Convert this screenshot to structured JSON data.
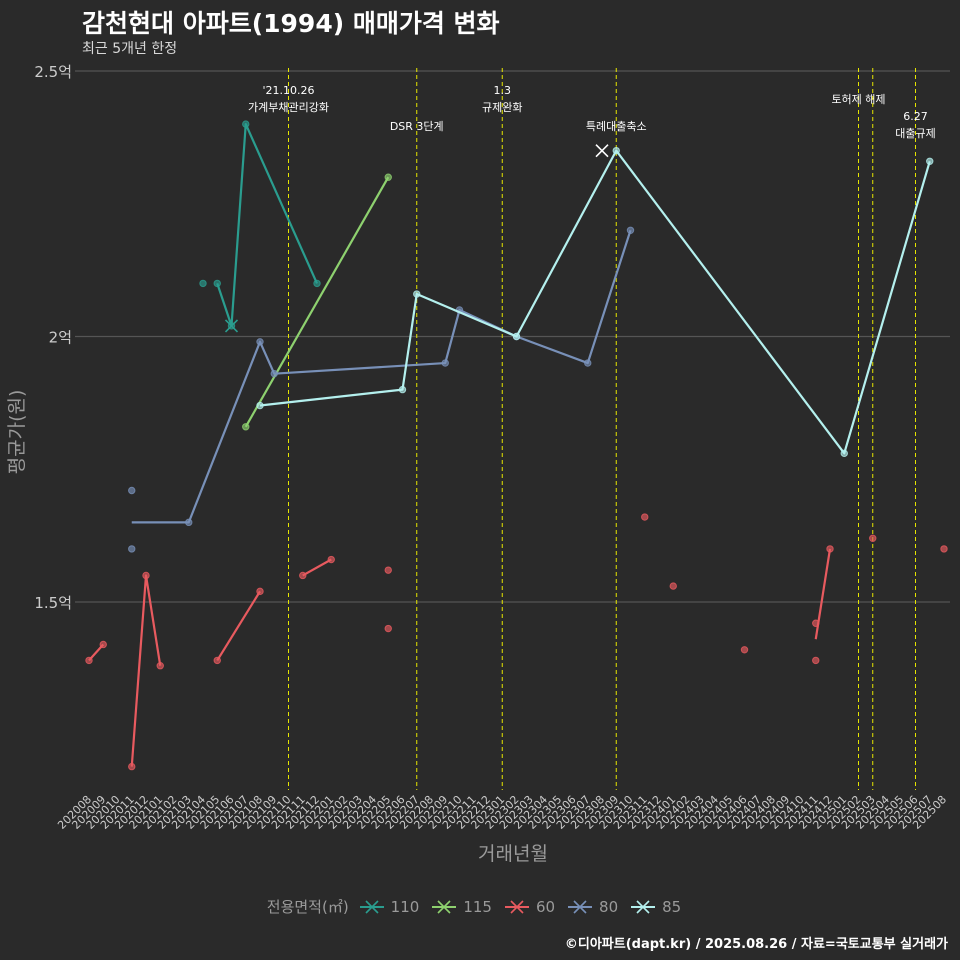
{
  "title": "감천현대 아파트(1994) 매매가격 변화",
  "subtitle": "최근 5개년 한정",
  "caption": "©디아파트(dapt.kr) / 2025.08.26 / 자료=국토교통부 실거래가",
  "legend_title": "전용면적(㎡)",
  "colors": {
    "background": "#2a2a2a",
    "grid": "#555555",
    "vline": "#e6e600",
    "tick": "#cccccc",
    "axis_label": "#9a9a9a"
  },
  "chart_data": {
    "type": "line",
    "title": "감천현대 아파트(1994) 매매가격 변화",
    "subtitle": "최근 5개년 한정",
    "xlabel": "거래년월",
    "ylabel": "평균가(원)",
    "ylim": [
      1.0,
      2.5
    ],
    "y_ticks": [
      {
        "value": 1.5,
        "label": "1.5억"
      },
      {
        "value": 2.0,
        "label": "2억"
      },
      {
        "value": 2.5,
        "label": "2.5억"
      }
    ],
    "x_categories": [
      "202008",
      "202009",
      "202010",
      "202011",
      "202012",
      "202101",
      "202102",
      "202103",
      "202104",
      "202105",
      "202106",
      "202107",
      "202108",
      "202109",
      "202110",
      "202111",
      "202112",
      "202201",
      "202202",
      "202203",
      "202204",
      "202205",
      "202206",
      "202207",
      "202208",
      "202209",
      "202210",
      "202211",
      "202212",
      "202301",
      "202302",
      "202303",
      "202304",
      "202305",
      "202306",
      "202307",
      "202308",
      "202309",
      "202310",
      "202311",
      "202312",
      "202401",
      "202402",
      "202403",
      "202404",
      "202405",
      "202406",
      "202407",
      "202408",
      "202409",
      "202410",
      "202411",
      "202412",
      "202501",
      "202502",
      "202503",
      "202504",
      "202505",
      "202506",
      "202507",
      "202508"
    ],
    "series": [
      {
        "name": "110",
        "color": "#2a9d8f",
        "line": [
          [
            "202105",
            2.1
          ],
          [
            "202106",
            2.02
          ],
          [
            "202107",
            2.4
          ],
          [
            "202112",
            2.1
          ]
        ],
        "points": [
          [
            "202104",
            2.1
          ],
          [
            "202105",
            2.1
          ],
          [
            "202106",
            2.02
          ],
          [
            "202107",
            2.4
          ],
          [
            "202112",
            2.1
          ]
        ],
        "cross": [
          [
            "202106",
            2.02
          ]
        ]
      },
      {
        "name": "115",
        "color": "#8ed16f",
        "line": [
          [
            "202107",
            1.83
          ],
          [
            "202205",
            2.3
          ]
        ],
        "points": [
          [
            "202107",
            1.83
          ],
          [
            "202205",
            2.3
          ]
        ],
        "cross": []
      },
      {
        "name": "60",
        "color": "#e85a5f",
        "line_segments": [
          [
            [
              "202008",
              1.39
            ],
            [
              "202009",
              1.42
            ]
          ],
          [
            [
              "202011",
              1.19
            ],
            [
              "202012",
              1.55
            ],
            [
              "202101",
              1.38
            ]
          ],
          [
            [
              "202105",
              1.39
            ],
            [
              "202108",
              1.52
            ]
          ],
          [
            [
              "202111",
              1.55
            ],
            [
              "202201",
              1.58
            ]
          ],
          [
            [
              "202411",
              1.43
            ],
            [
              "202412",
              1.6
            ]
          ]
        ],
        "points": [
          [
            "202008",
            1.39
          ],
          [
            "202009",
            1.42
          ],
          [
            "202011",
            1.19
          ],
          [
            "202012",
            1.55
          ],
          [
            "202101",
            1.38
          ],
          [
            "202105",
            1.39
          ],
          [
            "202108",
            1.52
          ],
          [
            "202111",
            1.55
          ],
          [
            "202201",
            1.58
          ],
          [
            "202205",
            1.56
          ],
          [
            "202205",
            1.45
          ],
          [
            "202311",
            1.66
          ],
          [
            "202401",
            1.53
          ],
          [
            "202406",
            1.41
          ],
          [
            "202411",
            1.46
          ],
          [
            "202411",
            1.39
          ],
          [
            "202412",
            1.6
          ],
          [
            "202503",
            1.62
          ],
          [
            "202508",
            1.6
          ]
        ],
        "cross": []
      },
      {
        "name": "80",
        "color": "#7890b8",
        "line": [
          [
            "202011",
            1.65
          ],
          [
            "202103",
            1.65
          ],
          [
            "202108",
            1.99
          ],
          [
            "202109",
            1.93
          ],
          [
            "202209",
            1.95
          ],
          [
            "202210",
            2.05
          ],
          [
            "202302",
            2.0
          ],
          [
            "202307",
            1.95
          ],
          [
            "202310",
            2.2
          ]
        ],
        "points": [
          [
            "202011",
            1.71
          ],
          [
            "202011",
            1.6
          ],
          [
            "202103",
            1.65
          ],
          [
            "202108",
            1.99
          ],
          [
            "202109",
            1.93
          ],
          [
            "202209",
            1.95
          ],
          [
            "202210",
            2.05
          ],
          [
            "202302",
            2.0
          ],
          [
            "202307",
            1.95
          ],
          [
            "202310",
            2.2
          ]
        ],
        "cross": []
      },
      {
        "name": "85",
        "color": "#b4f0ee",
        "line": [
          [
            "202108",
            1.87
          ],
          [
            "202206",
            1.9
          ],
          [
            "202207",
            2.08
          ],
          [
            "202302",
            2.0
          ],
          [
            "202309",
            2.35
          ],
          [
            "202501",
            1.78
          ],
          [
            "202507",
            2.33
          ]
        ],
        "points": [
          [
            "202108",
            1.87
          ],
          [
            "202206",
            1.9
          ],
          [
            "202207",
            2.08
          ],
          [
            "202302",
            2.0
          ],
          [
            "202309",
            2.35
          ],
          [
            "202501",
            1.78
          ],
          [
            "202507",
            2.33
          ]
        ],
        "cross": [
          [
            "202308",
            2.35
          ]
        ]
      }
    ],
    "annotations": [
      {
        "x": "202110",
        "lines": [
          "'21.10.26",
          "가계부채관리강화"
        ]
      },
      {
        "x": "202207",
        "lines": [
          "DSR 3단계"
        ]
      },
      {
        "x": "202301",
        "lines": [
          "1.3",
          "규제완화"
        ]
      },
      {
        "x": "202309",
        "lines": [
          "특례대출축소"
        ]
      },
      {
        "x": "202502",
        "lines": [
          "토허제 해제"
        ]
      },
      {
        "x": "202503",
        "lines": []
      },
      {
        "x": "202506",
        "lines": [
          "6.27",
          "대출규제"
        ]
      }
    ],
    "grid": true,
    "legend_position": "bottom"
  }
}
